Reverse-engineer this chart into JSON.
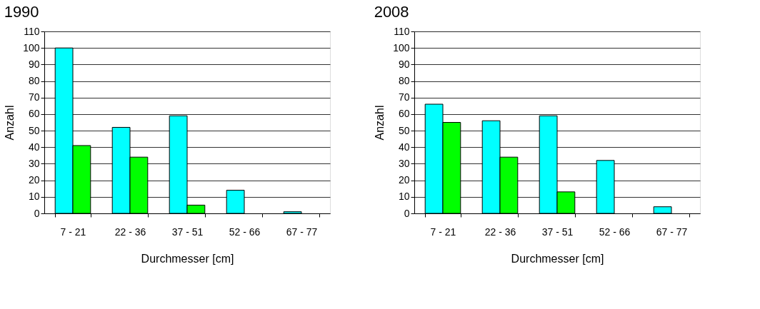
{
  "chart_data": [
    {
      "type": "bar",
      "title": "1990",
      "xlabel": "Durchmesser [cm]",
      "ylabel": "Anzahl",
      "categories": [
        "7 - 21",
        "22 - 36",
        "37 - 51",
        "52 - 66",
        "67 - 77"
      ],
      "series": [
        {
          "color": "#00ffff",
          "values": [
            100,
            52,
            59,
            14,
            1
          ]
        },
        {
          "color": "#00ff00",
          "values": [
            41,
            34,
            5,
            0,
            0
          ]
        }
      ],
      "ylim": [
        0,
        110
      ],
      "yticks": [
        0,
        10,
        20,
        30,
        40,
        50,
        60,
        70,
        80,
        90,
        100,
        110
      ],
      "grid": "y",
      "legend": false
    },
    {
      "type": "bar",
      "title": "2008",
      "xlabel": "Durchmesser [cm]",
      "ylabel": "Anzahl",
      "categories": [
        "7 - 21",
        "22 - 36",
        "37 - 51",
        "52 - 66",
        "67 - 77"
      ],
      "series": [
        {
          "color": "#00ffff",
          "values": [
            66,
            56,
            59,
            32,
            4
          ]
        },
        {
          "color": "#00ff00",
          "values": [
            55,
            34,
            13,
            0,
            0
          ]
        }
      ],
      "ylim": [
        0,
        110
      ],
      "yticks": [
        0,
        10,
        20,
        30,
        40,
        50,
        60,
        70,
        80,
        90,
        100,
        110
      ],
      "grid": "y",
      "legend": false
    }
  ]
}
